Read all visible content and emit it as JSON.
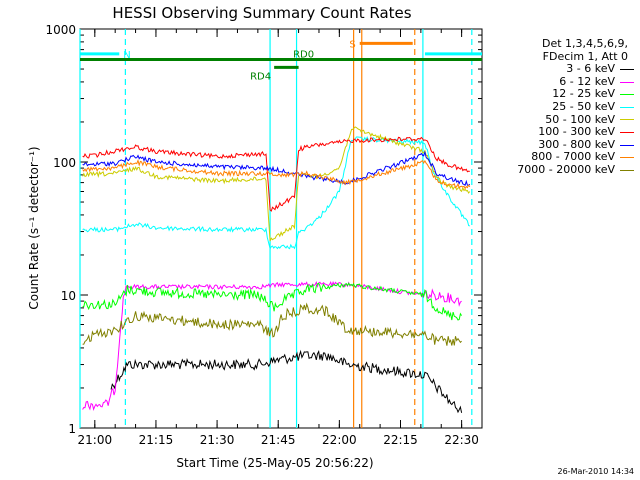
{
  "chart_data": {
    "type": "line",
    "title": "HESSI Observing Summary Count Rates",
    "xlabel": "Start Time (25-May-05 20:56:22)",
    "ylabel": "Count Rate (s⁻¹ detector⁻¹)",
    "yscale": "log",
    "xlim": [
      "20:56:22",
      "22:35:00"
    ],
    "ylim": [
      1,
      1000
    ],
    "x_ticks": [
      "21:00",
      "21:15",
      "21:30",
      "21:45",
      "22:00",
      "22:15",
      "22:30"
    ],
    "y_ticks": [
      "1",
      "10",
      "100",
      "1000"
    ],
    "legend_header": [
      "Det 1,3,4,5,6,9,",
      "FDecim 1, Att 0"
    ],
    "legend_position": "right",
    "series": [
      {
        "name": "3 - 6 keV",
        "color": "#000000",
        "x": [
          "21:04",
          "21:08",
          "21:09",
          "21:15",
          "21:30",
          "21:40",
          "21:46",
          "21:52",
          "21:57",
          "22:02",
          "22:21",
          "22:24",
          "22:27",
          "22:30"
        ],
        "y": [
          2,
          3,
          3,
          3,
          3,
          3,
          3.3,
          3.5,
          3.5,
          3,
          2.5,
          2,
          1.6,
          1.3
        ]
      },
      {
        "name": "6 - 12 keV",
        "color": "#ff00ff",
        "x": [
          "20:57",
          "21:00",
          "21:03",
          "21:05",
          "21:07",
          "21:08",
          "21:15",
          "21:30",
          "21:40",
          "21:46",
          "21:52",
          "21:57",
          "22:02",
          "22:21",
          "22:24",
          "22:27",
          "22:30"
        ],
        "y": [
          1.5,
          1.5,
          1.5,
          2,
          10,
          11.5,
          11.5,
          11.5,
          11.5,
          12,
          12,
          12,
          12,
          10,
          10,
          9.5,
          9
        ]
      },
      {
        "name": "12 - 25 keV",
        "color": "#00ff00",
        "x": [
          "20:57",
          "21:00",
          "21:05",
          "21:08",
          "21:15",
          "21:30",
          "21:40",
          "21:44",
          "21:46",
          "21:52",
          "21:57",
          "22:02",
          "22:21",
          "22:24",
          "22:27",
          "22:30"
        ],
        "y": [
          8.5,
          8.5,
          8.5,
          11,
          10.5,
          10,
          10,
          8,
          9,
          11,
          11.5,
          12,
          10,
          8,
          7,
          7
        ]
      },
      {
        "name": "25 - 50 keV",
        "color": "#00ffff",
        "x": [
          "20:57",
          "21:05",
          "21:10",
          "21:15",
          "21:30",
          "21:42",
          "21:43",
          "21:49",
          "21:50",
          "21:55",
          "22:00",
          "22:03",
          "22:21",
          "22:23",
          "22:26",
          "22:30",
          "22:32"
        ],
        "y": [
          31,
          31,
          34,
          32,
          31,
          31,
          23,
          23,
          29,
          38,
          60,
          150,
          140,
          85,
          60,
          40,
          33
        ]
      },
      {
        "name": "50 - 100 keV",
        "color": "#cccc00",
        "x": [
          "20:57",
          "21:05",
          "21:10",
          "21:15",
          "21:30",
          "21:42",
          "21:43",
          "21:49",
          "21:50",
          "21:55",
          "22:00",
          "22:03",
          "22:21",
          "22:24",
          "22:27",
          "22:30",
          "22:32"
        ],
        "y": [
          80,
          82,
          90,
          78,
          72,
          75,
          26,
          33,
          80,
          78,
          90,
          180,
          120,
          75,
          65,
          62,
          60
        ]
      },
      {
        "name": "100 - 300 keV",
        "color": "#ff0000",
        "x": [
          "20:57",
          "21:00",
          "21:07",
          "21:10",
          "21:15",
          "21:30",
          "21:40",
          "21:42",
          "21:43",
          "21:49",
          "21:50",
          "21:55",
          "22:00",
          "22:03",
          "22:21",
          "22:24",
          "22:27",
          "22:30",
          "22:32"
        ],
        "y": [
          110,
          112,
          125,
          130,
          120,
          110,
          115,
          115,
          43,
          55,
          125,
          135,
          140,
          145,
          150,
          105,
          95,
          88,
          85
        ]
      },
      {
        "name": "300 - 800 keV",
        "color": "#0000ff",
        "x": [
          "20:57",
          "21:05",
          "21:10",
          "21:15",
          "21:30",
          "21:42",
          "21:46",
          "21:52",
          "22:02",
          "22:21",
          "22:24",
          "22:27",
          "22:30",
          "22:32"
        ],
        "y": [
          95,
          98,
          110,
          100,
          92,
          90,
          86,
          78,
          70,
          115,
          82,
          75,
          70,
          68
        ]
      },
      {
        "name": "800 - 7000 keV",
        "color": "#ff8000",
        "x": [
          "20:57",
          "21:05",
          "21:10",
          "21:15",
          "21:30",
          "21:42",
          "21:46",
          "21:52",
          "22:02",
          "22:21",
          "22:24",
          "22:27",
          "22:30",
          "22:32"
        ],
        "y": [
          88,
          90,
          100,
          92,
          82,
          82,
          80,
          82,
          70,
          100,
          72,
          68,
          65,
          65
        ]
      },
      {
        "name": "7000 - 20000 keV",
        "color": "#808000",
        "x": [
          "20:57",
          "21:00",
          "21:05",
          "21:10",
          "21:20",
          "21:30",
          "21:40",
          "21:44",
          "21:46",
          "21:52",
          "21:57",
          "22:02",
          "22:21",
          "22:24",
          "22:27",
          "22:30"
        ],
        "y": [
          4.5,
          5,
          5.5,
          7,
          6.5,
          6,
          6,
          5,
          7,
          8,
          7.5,
          5.5,
          5,
          4.5,
          4.5,
          4.5
        ]
      }
    ],
    "flags": [
      {
        "label": "N",
        "color": "#00ffff",
        "y": 650,
        "start": "20:56:22",
        "end": "21:06"
      },
      {
        "label": "",
        "color": "#00ffff",
        "y": 650,
        "start": "22:21",
        "end": "22:35"
      },
      {
        "label": "S",
        "color": "#ff8000",
        "y": 780,
        "start": "22:05",
        "end": "22:18"
      },
      {
        "label": "RD0",
        "color": "#008000",
        "y": 590,
        "start": "20:56:22",
        "end": "22:35"
      },
      {
        "label": "RD4",
        "color": "#008000",
        "y": 515,
        "start": "21:44",
        "end": "21:50"
      }
    ],
    "vlines": [
      {
        "t": "20:56:22",
        "color": "#00ffff",
        "style": "solid"
      },
      {
        "t": "21:07:30",
        "color": "#00ffff",
        "style": "dashed"
      },
      {
        "t": "21:43",
        "color": "#00ffff",
        "style": "solid"
      },
      {
        "t": "21:49:30",
        "color": "#00ffff",
        "style": "solid"
      },
      {
        "t": "22:03:30",
        "color": "#ff8000",
        "style": "solid"
      },
      {
        "t": "22:05:30",
        "color": "#ff8000",
        "style": "solid"
      },
      {
        "t": "22:18:30",
        "color": "#ff8000",
        "style": "dashed"
      },
      {
        "t": "22:20:30",
        "color": "#00ffff",
        "style": "solid"
      },
      {
        "t": "22:32:30",
        "color": "#00ffff",
        "style": "dashed"
      }
    ],
    "grid": false
  },
  "timestamp": "26-Mar-2010 14:34"
}
